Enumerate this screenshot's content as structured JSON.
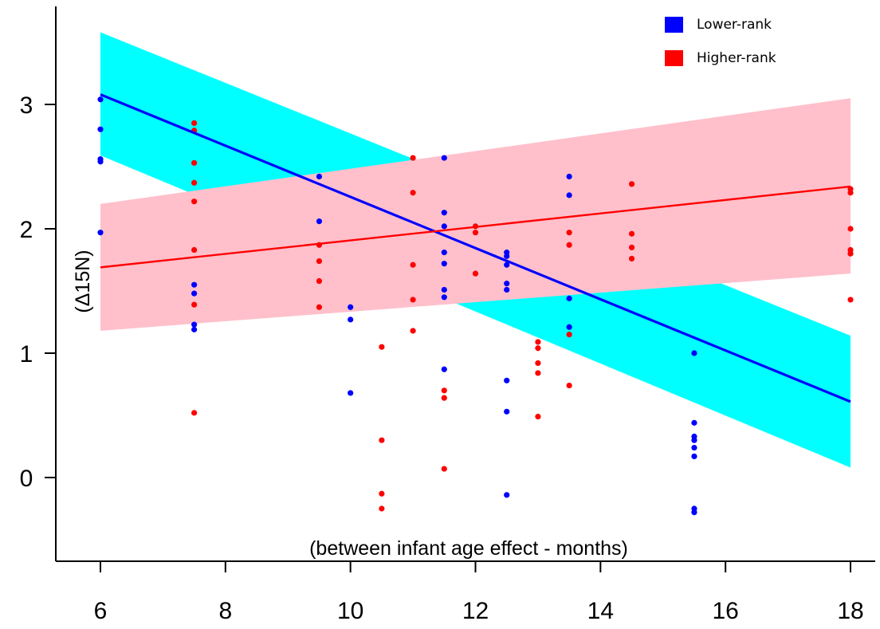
{
  "chart_data": {
    "type": "scatter",
    "xlabel": "(between infant age effect - months)",
    "ylabel": "(Δ15N)",
    "xlim": [
      5.4,
      18.4
    ],
    "ylim": [
      -0.55,
      3.75
    ],
    "xticks": [
      6,
      8,
      10,
      12,
      14,
      16,
      18
    ],
    "yticks": [
      0,
      1,
      2,
      3
    ],
    "grid": false,
    "legend_position": "top-right",
    "series": [
      {
        "name": "Lower-rank",
        "color": "#0000ff",
        "band_color": "#00ffff",
        "fit": {
          "x": [
            6,
            18
          ],
          "y": [
            3.08,
            0.61
          ]
        },
        "band": {
          "x": [
            6,
            18
          ],
          "upper": [
            3.58,
            1.14
          ],
          "lower": [
            2.59,
            0.08
          ]
        },
        "points": [
          [
            6,
            3.04
          ],
          [
            6,
            2.8
          ],
          [
            6,
            2.56
          ],
          [
            6,
            2.54
          ],
          [
            6,
            1.97
          ],
          [
            7.5,
            1.55
          ],
          [
            7.5,
            1.48
          ],
          [
            7.5,
            1.23
          ],
          [
            7.5,
            1.19
          ],
          [
            9.5,
            2.42
          ],
          [
            9.5,
            2.06
          ],
          [
            10,
            1.37
          ],
          [
            10,
            1.27
          ],
          [
            10,
            0.68
          ],
          [
            11.5,
            2.57
          ],
          [
            11.5,
            2.13
          ],
          [
            11.5,
            2.02
          ],
          [
            11.5,
            1.81
          ],
          [
            11.5,
            1.72
          ],
          [
            11.5,
            1.51
          ],
          [
            11.5,
            1.45
          ],
          [
            11.5,
            0.87
          ],
          [
            12.5,
            1.81
          ],
          [
            12.5,
            1.78
          ],
          [
            12.5,
            1.71
          ],
          [
            12.5,
            1.56
          ],
          [
            12.5,
            1.51
          ],
          [
            12.5,
            0.78
          ],
          [
            12.5,
            0.53
          ],
          [
            12.5,
            -0.14
          ],
          [
            13.5,
            2.42
          ],
          [
            13.5,
            2.27
          ],
          [
            13.5,
            1.44
          ],
          [
            13.5,
            1.21
          ],
          [
            15.5,
            1.0
          ],
          [
            15.5,
            0.44
          ],
          [
            15.5,
            0.33
          ],
          [
            15.5,
            0.3
          ],
          [
            15.5,
            0.24
          ],
          [
            15.5,
            0.17
          ],
          [
            15.5,
            -0.25
          ],
          [
            15.5,
            -0.28
          ]
        ]
      },
      {
        "name": "Higher-rank",
        "color": "#ff0000",
        "band_color": "#ffc0cb",
        "fit": {
          "x": [
            6,
            18
          ],
          "y": [
            1.69,
            2.34
          ]
        },
        "band": {
          "x": [
            6,
            18
          ],
          "upper": [
            2.2,
            3.05
          ],
          "lower": [
            1.18,
            1.64
          ]
        },
        "points": [
          [
            7.5,
            2.85
          ],
          [
            7.5,
            2.79
          ],
          [
            7.5,
            2.53
          ],
          [
            7.5,
            2.37
          ],
          [
            7.5,
            2.22
          ],
          [
            7.5,
            1.83
          ],
          [
            7.5,
            1.39
          ],
          [
            7.5,
            0.52
          ],
          [
            9.5,
            1.87
          ],
          [
            9.5,
            1.74
          ],
          [
            9.5,
            1.58
          ],
          [
            9.5,
            1.37
          ],
          [
            10.5,
            1.05
          ],
          [
            10.5,
            0.3
          ],
          [
            10.5,
            -0.13
          ],
          [
            10.5,
            -0.25
          ],
          [
            11,
            2.57
          ],
          [
            11,
            2.29
          ],
          [
            11,
            1.71
          ],
          [
            11,
            1.43
          ],
          [
            11,
            1.18
          ],
          [
            11.5,
            0.7
          ],
          [
            11.5,
            0.64
          ],
          [
            11.5,
            0.07
          ],
          [
            12,
            2.02
          ],
          [
            12,
            1.97
          ],
          [
            12,
            1.64
          ],
          [
            13,
            1.09
          ],
          [
            13,
            1.04
          ],
          [
            13,
            0.92
          ],
          [
            13,
            0.84
          ],
          [
            13,
            0.49
          ],
          [
            13.5,
            1.97
          ],
          [
            13.5,
            1.87
          ],
          [
            13.5,
            1.15
          ],
          [
            13.5,
            0.74
          ],
          [
            14.5,
            2.36
          ],
          [
            14.5,
            1.96
          ],
          [
            14.5,
            1.85
          ],
          [
            14.5,
            1.76
          ],
          [
            18,
            2.32
          ],
          [
            18,
            2.29
          ],
          [
            18,
            2.0
          ],
          [
            18,
            1.83
          ],
          [
            18,
            1.8
          ],
          [
            18,
            1.43
          ]
        ]
      }
    ]
  }
}
